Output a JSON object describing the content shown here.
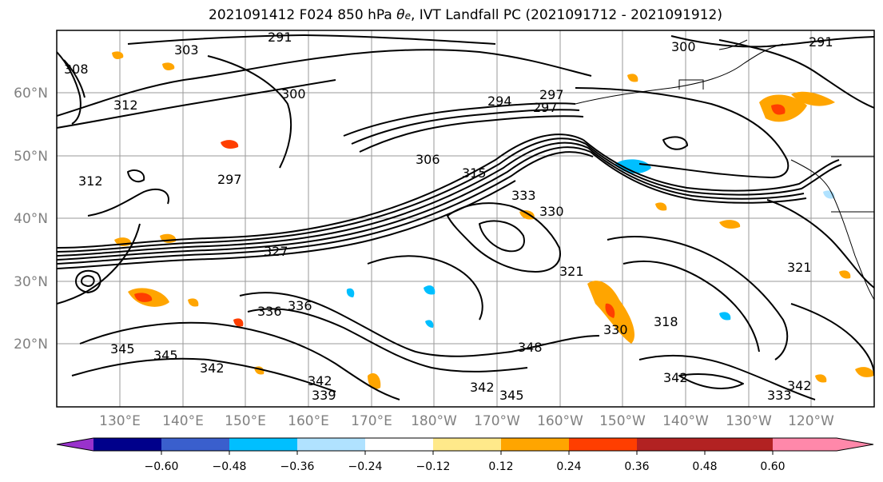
{
  "title": {
    "prefix": "2021091412 F024 850 hPa ",
    "theta": "θ",
    "theta_sub": "e",
    "suffix": ", IVT Landfall PC (2021091712 - 2021091912)"
  },
  "map": {
    "lat_labels": [
      "60°N",
      "50°N",
      "40°N",
      "30°N",
      "20°N"
    ],
    "lon_labels": [
      "130°E",
      "140°E",
      "150°E",
      "160°E",
      "170°E",
      "180°W",
      "170°W",
      "160°W",
      "150°W",
      "140°W",
      "130°W",
      "120°W"
    ],
    "contour_labels": [
      "291",
      "303",
      "308",
      "312",
      "300",
      "297",
      "294",
      "297",
      "306",
      "300",
      "291",
      "312",
      "297",
      "315",
      "330",
      "333",
      "336",
      "336",
      "342",
      "345",
      "345",
      "339",
      "342",
      "345",
      "348",
      "330",
      "327",
      "321",
      "342",
      "342",
      "333",
      "342",
      "321",
      "318"
    ]
  },
  "colorbar": {
    "ticks": [
      "−0.60",
      "−0.48",
      "−0.36",
      "−0.24",
      "−0.12",
      "0.12",
      "0.24",
      "0.36",
      "0.48",
      "0.60"
    ],
    "colors": [
      "#9932cc",
      "#00008b",
      "#3a5fcd",
      "#00bfff",
      "#b0e2ff",
      "#ffffff",
      "#ffe98a",
      "#ffa500",
      "#ff3e00",
      "#b22222",
      "#ff88aa"
    ]
  }
}
